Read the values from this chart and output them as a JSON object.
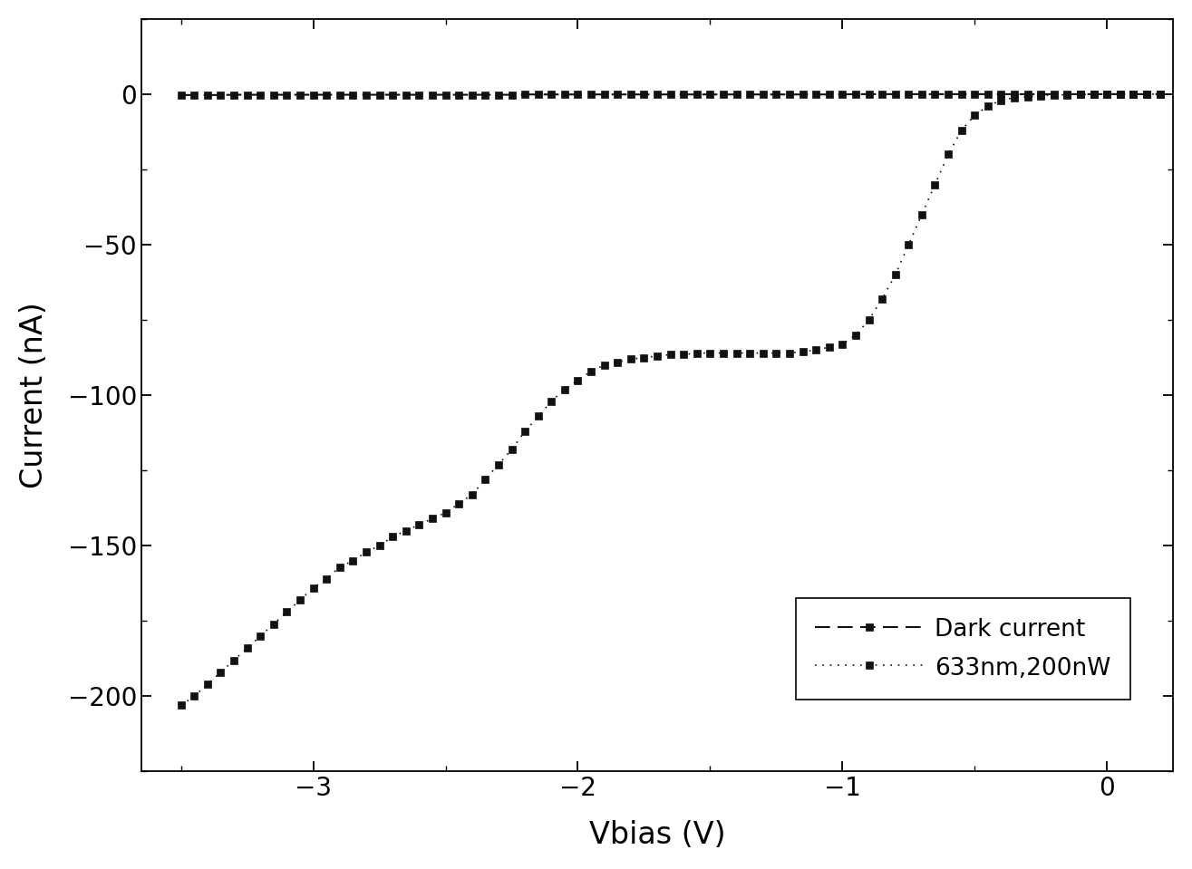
{
  "title": "",
  "xlabel": "Vbias (V)",
  "ylabel": "Current (nA)",
  "xlim": [
    -3.65,
    0.25
  ],
  "ylim": [
    -225,
    25
  ],
  "xticks": [
    -3,
    -2,
    -1,
    0
  ],
  "yticks": [
    0,
    -50,
    -100,
    -150,
    -200
  ],
  "background_color": "#ffffff",
  "dark_current": {
    "label": "Dark current",
    "color": "#111111",
    "markersize": 6,
    "linewidth": 1.5
  },
  "photo_current": {
    "label": "633nm,200nW",
    "color": "#111111",
    "markersize": 6,
    "linewidth": 1.2
  },
  "dark_x": [
    -3.5,
    -3.45,
    -3.4,
    -3.35,
    -3.3,
    -3.25,
    -3.2,
    -3.15,
    -3.1,
    -3.05,
    -3.0,
    -2.95,
    -2.9,
    -2.85,
    -2.8,
    -2.75,
    -2.7,
    -2.65,
    -2.6,
    -2.55,
    -2.5,
    -2.45,
    -2.4,
    -2.35,
    -2.3,
    -2.25,
    -2.2,
    -2.15,
    -2.1,
    -2.05,
    -2.0,
    -1.95,
    -1.9,
    -1.85,
    -1.8,
    -1.75,
    -1.7,
    -1.65,
    -1.6,
    -1.55,
    -1.5,
    -1.45,
    -1.4,
    -1.35,
    -1.3,
    -1.25,
    -1.2,
    -1.15,
    -1.1,
    -1.05,
    -1.0,
    -0.95,
    -0.9,
    -0.85,
    -0.8,
    -0.75,
    -0.7,
    -0.65,
    -0.6,
    -0.55,
    -0.5,
    -0.45,
    -0.4,
    -0.35,
    -0.3,
    -0.25,
    -0.2,
    -0.15,
    -0.1,
    -0.05,
    0.0,
    0.05,
    0.1,
    0.15,
    0.2
  ],
  "dark_y": [
    -0.3,
    -0.3,
    -0.3,
    -0.3,
    -0.2,
    -0.2,
    -0.2,
    -0.2,
    -0.2,
    -0.2,
    -0.2,
    -0.2,
    -0.2,
    -0.2,
    -0.2,
    -0.2,
    -0.2,
    -0.2,
    -0.2,
    -0.2,
    -0.2,
    -0.2,
    -0.2,
    -0.2,
    -0.2,
    -0.2,
    -0.1,
    -0.1,
    -0.1,
    -0.1,
    -0.1,
    -0.1,
    -0.1,
    -0.1,
    -0.1,
    -0.1,
    -0.1,
    -0.1,
    -0.1,
    -0.1,
    -0.1,
    -0.1,
    -0.1,
    -0.1,
    -0.1,
    -0.1,
    -0.1,
    -0.1,
    -0.1,
    -0.1,
    -0.1,
    0.0,
    0.0,
    0.0,
    0.0,
    0.0,
    0.0,
    0.0,
    0.0,
    0.0,
    0.0,
    0.0,
    0.0,
    0.0,
    0.0,
    0.0,
    0.0,
    0.0,
    0.0,
    0.0,
    0.0,
    0.0,
    0.0,
    0.0,
    0.0
  ],
  "photo_x": [
    -3.5,
    -3.45,
    -3.4,
    -3.35,
    -3.3,
    -3.25,
    -3.2,
    -3.15,
    -3.1,
    -3.05,
    -3.0,
    -2.95,
    -2.9,
    -2.85,
    -2.8,
    -2.75,
    -2.7,
    -2.65,
    -2.6,
    -2.55,
    -2.5,
    -2.45,
    -2.4,
    -2.35,
    -2.3,
    -2.25,
    -2.2,
    -2.15,
    -2.1,
    -2.05,
    -2.0,
    -1.95,
    -1.9,
    -1.85,
    -1.8,
    -1.75,
    -1.7,
    -1.65,
    -1.6,
    -1.55,
    -1.5,
    -1.45,
    -1.4,
    -1.35,
    -1.3,
    -1.25,
    -1.2,
    -1.15,
    -1.1,
    -1.05,
    -1.0,
    -0.95,
    -0.9,
    -0.85,
    -0.8,
    -0.75,
    -0.7,
    -0.65,
    -0.6,
    -0.55,
    -0.5,
    -0.45,
    -0.4,
    -0.35,
    -0.3,
    -0.25,
    -0.2,
    -0.15,
    -0.1,
    -0.05,
    0.0,
    0.05,
    0.1,
    0.15,
    0.2
  ],
  "photo_y": [
    -203,
    -200,
    -196,
    -192,
    -188,
    -184,
    -180,
    -176,
    -172,
    -168,
    -164,
    -161,
    -157,
    -155,
    -152,
    -150,
    -147,
    -145,
    -143,
    -141,
    -139,
    -136,
    -133,
    -128,
    -123,
    -118,
    -112,
    -107,
    -102,
    -98,
    -95,
    -92,
    -90,
    -89,
    -88,
    -87.5,
    -87,
    -86.5,
    -86.5,
    -86,
    -86,
    -86,
    -86,
    -86,
    -86,
    -86,
    -86,
    -85.5,
    -85,
    -84,
    -83,
    -80,
    -75,
    -68,
    -60,
    -50,
    -40,
    -30,
    -20,
    -12,
    -7,
    -4,
    -2,
    -1.2,
    -0.8,
    -0.5,
    -0.3,
    -0.2,
    -0.1,
    -0.05,
    0.0,
    0.0,
    0.0,
    0.0,
    0.0
  ]
}
